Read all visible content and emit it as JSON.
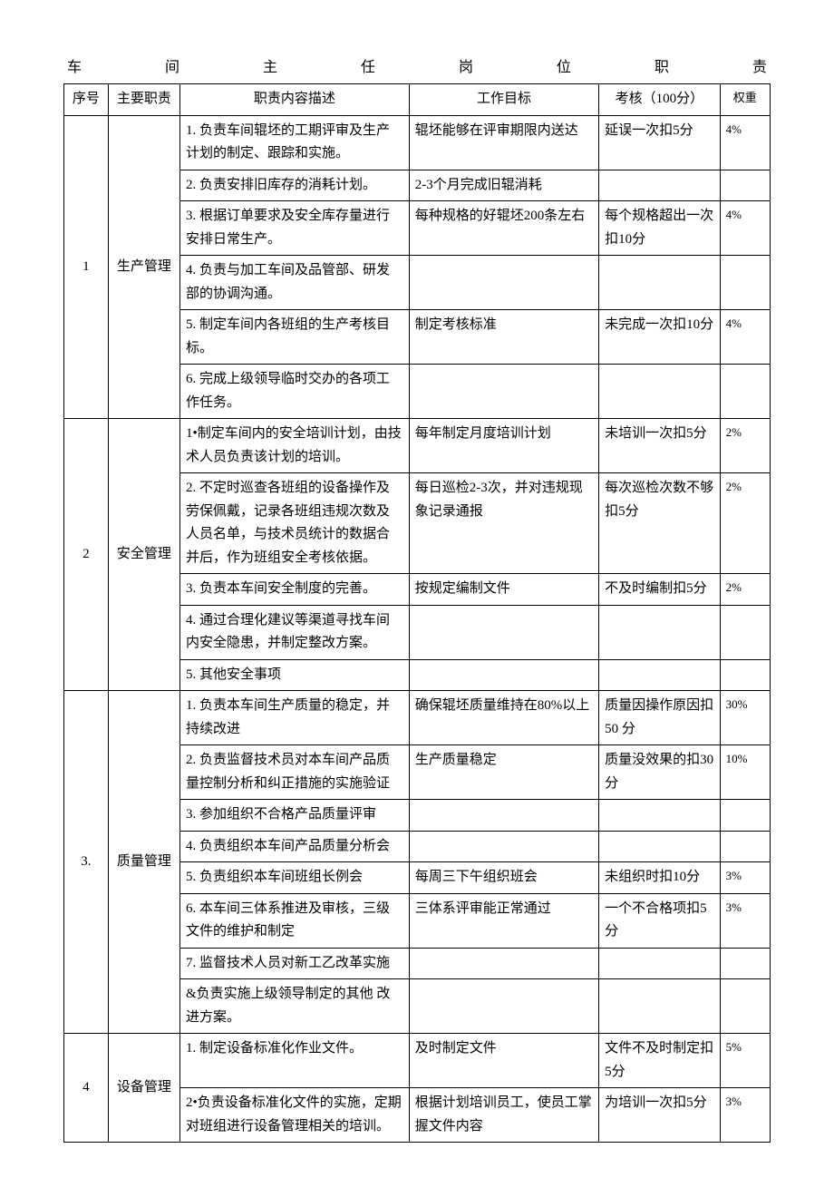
{
  "title": "车间主任岗位职责",
  "title_chars": [
    "车",
    "间",
    "主",
    "任",
    "岗",
    "位",
    "职",
    "责"
  ],
  "headers": {
    "idx": "序号",
    "duty": "主要职责",
    "desc": "职责内容描述",
    "goal": "工作目标",
    "score": "考核（100分）",
    "weight": "权重"
  },
  "sections": [
    {
      "idx": "1",
      "duty": "生产管理",
      "rows": [
        {
          "desc": "1. 负责车间辊坯的工期评审及生产计划的制定、跟踪和实施。",
          "goal": "辊坯能够在评审期限内送达",
          "score": "延误一次扣5分",
          "weight": "4%"
        },
        {
          "desc": "2. 负责安排旧库存的消耗计划。",
          "goal": "2-3个月完成旧辊消耗",
          "score": "",
          "weight": ""
        },
        {
          "desc": "3. 根据订单要求及安全库存量进行安排日常生产。",
          "goal": "每种规格的好辊坯200条左右",
          "score": "每个规格超出一次扣10分",
          "weight": "4%"
        },
        {
          "desc": "4. 负责与加工车间及品管部、研发部的协调沟通。",
          "goal": "",
          "score": "",
          "weight": ""
        },
        {
          "desc": "5. 制定车间内各班组的生产考核目标。",
          "goal": "制定考核标准",
          "score": "未完成一次扣10分",
          "weight": "4%"
        },
        {
          "desc": "6. 完成上级领导临时交办的各项工作任务。",
          "goal": "",
          "score": "",
          "weight": ""
        }
      ]
    },
    {
      "idx": "2",
      "duty": "安全管理",
      "rows": [
        {
          "desc": "1•制定车间内的安全培训计划，由技术人员负责该计划的培训。",
          "goal": "每年制定月度培训计划",
          "score": "未培训一次扣5分",
          "weight": "2%"
        },
        {
          "desc": "2. 不定时巡查各班组的设备操作及劳保佩戴，记录各班组违规次数及人员名单，与技术员统计的数据合并后，作为班组安全考核依据。",
          "goal": "每日巡检2-3次，并对违规现象记录通报",
          "score": "每次巡检次数不够扣5分",
          "weight": "2%"
        },
        {
          "desc": "3. 负责本车间安全制度的完善。",
          "goal": "按规定编制文件",
          "score": "不及时编制扣5分",
          "weight": "2%"
        },
        {
          "desc": "4. 通过合理化建议等渠道寻找车间内安全隐患，并制定整改方案。",
          "goal": "",
          "score": "",
          "weight": ""
        },
        {
          "desc": "5. 其他安全事项",
          "goal": "",
          "score": "",
          "weight": ""
        }
      ]
    },
    {
      "idx": "3.",
      "duty": "质量管理",
      "rows": [
        {
          "desc": "1. 负责本车间生产质量的稳定，并持续改进",
          "goal": "确保辊坯质量维持在80%以上",
          "score": "质量因操作原因扣50 分",
          "weight": "30%"
        },
        {
          "desc": "2. 负责监督技术员对本车间产品质量控制分析和纠正措施的实施验证",
          "goal": "生产质量稳定",
          "score": "质量没效果的扣30分",
          "weight": "10%"
        },
        {
          "desc": "3. 参加组织不合格产品质量评审",
          "goal": "",
          "score": "",
          "weight": ""
        },
        {
          "desc": "4. 负责组织本车间产品质量分析会",
          "goal": "",
          "score": "",
          "weight": ""
        },
        {
          "desc": "5. 负责组织本车间班组长例会",
          "goal": "每周三下午组织班会",
          "score": "未组织时扣10分",
          "weight": "3%"
        },
        {
          "desc": "6. 本车间三体系推进及审核，三级文件的维护和制定",
          "goal": "三体系评审能正常通过",
          "score": "一个不合格项扣5分",
          "weight": "3%"
        },
        {
          "desc": "7. 监督技术人员对新工乙改革实施",
          "goal": "",
          "score": "",
          "weight": ""
        },
        {
          "desc": "&负责实施上级领导制定的其他 改进方案。",
          "goal": "",
          "score": "",
          "weight": ""
        }
      ]
    },
    {
      "idx": "4",
      "duty": "设备管理",
      "rows": [
        {
          "desc": "1. 制定设备标准化作业文件。",
          "goal": "及时制定文件",
          "score": "文件不及时制定扣5分",
          "weight": "5%"
        },
        {
          "desc": "2•负责设备标准化文件的实施，定期对班组进行设备管理相关的培训。",
          "goal": "根据计划培训员工，使员工掌握文件内容",
          "score": "为培训一次扣5分",
          "weight": "3%"
        }
      ]
    }
  ],
  "styling": {
    "font_family": "SimSun",
    "font_size_pt": 11,
    "border_color": "#000000",
    "background_color": "#ffffff",
    "text_color": "#000000",
    "line_height": 1.7
  }
}
